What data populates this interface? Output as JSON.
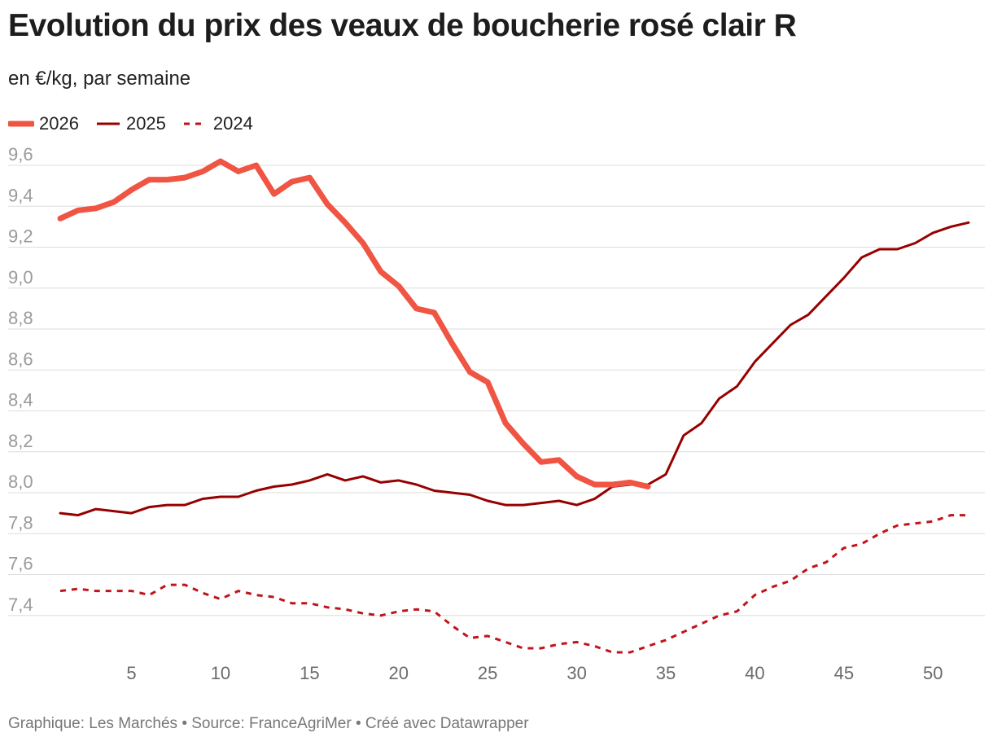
{
  "header": {
    "title": "Evolution du prix des veaux de boucherie rosé clair R",
    "subtitle": "en €/kg, par semaine"
  },
  "footer": {
    "text": "Graphique: Les Marchés • Source: FranceAgriMer • Créé avec Datawrapper"
  },
  "colors": {
    "s2026": "#f05443",
    "s2025": "#970000",
    "s2024": "#c0141a",
    "grid": "#dddddd"
  },
  "chart_data": {
    "type": "line",
    "title": "Evolution du prix des veaux de boucherie rosé clair R",
    "subtitle": "en €/kg, par semaine",
    "xlabel": "",
    "ylabel": "",
    "xlim": [
      1,
      52
    ],
    "ylim": [
      7.2,
      9.6
    ],
    "yticks": [
      7.4,
      7.6,
      7.8,
      8.0,
      8.2,
      8.4,
      8.6,
      8.8,
      9.0,
      9.2,
      9.4,
      9.6
    ],
    "ytick_labels": [
      "7,4",
      "7,6",
      "7,8",
      "8,0",
      "8,2",
      "8,4",
      "8,6",
      "8,8",
      "9,0",
      "9,2",
      "9,4",
      "9,6"
    ],
    "xticks": [
      5,
      10,
      15,
      20,
      25,
      30,
      35,
      40,
      45,
      50
    ],
    "xtick_labels": [
      "5",
      "10",
      "15",
      "20",
      "25",
      "30",
      "35",
      "40",
      "45",
      "50"
    ],
    "grid": true,
    "legend_position": "top-left",
    "series": [
      {
        "name": "2026",
        "style": "thick",
        "x": [
          1,
          2,
          3,
          4,
          5,
          6,
          7,
          8,
          9,
          10,
          11,
          12,
          13,
          14,
          15,
          16,
          17,
          18,
          19,
          20,
          21,
          22,
          23,
          24,
          25,
          26,
          27,
          28,
          29,
          30,
          31,
          32,
          33,
          34
        ],
        "values": [
          9.34,
          9.38,
          9.39,
          9.42,
          9.48,
          9.53,
          9.53,
          9.54,
          9.57,
          9.62,
          9.57,
          9.6,
          9.46,
          9.52,
          9.54,
          9.41,
          9.32,
          9.22,
          9.08,
          9.01,
          8.9,
          8.88,
          8.73,
          8.59,
          8.54,
          8.34,
          8.24,
          8.15,
          8.16,
          8.08,
          8.04,
          8.04,
          8.05,
          8.03
        ]
      },
      {
        "name": "2025",
        "style": "solid",
        "x": [
          1,
          2,
          3,
          4,
          5,
          6,
          7,
          8,
          9,
          10,
          11,
          12,
          13,
          14,
          15,
          16,
          17,
          18,
          19,
          20,
          21,
          22,
          23,
          24,
          25,
          26,
          27,
          28,
          29,
          30,
          31,
          32,
          33,
          34,
          35,
          36,
          37,
          38,
          39,
          40,
          41,
          42,
          43,
          44,
          45,
          46,
          47,
          48,
          49,
          50,
          51,
          52
        ],
        "values": [
          7.9,
          7.89,
          7.92,
          7.91,
          7.9,
          7.93,
          7.94,
          7.94,
          7.97,
          7.98,
          7.98,
          8.01,
          8.03,
          8.04,
          8.06,
          8.09,
          8.06,
          8.08,
          8.05,
          8.06,
          8.04,
          8.01,
          8.0,
          7.99,
          7.96,
          7.94,
          7.94,
          7.95,
          7.96,
          7.94,
          7.97,
          8.03,
          8.04,
          8.04,
          8.09,
          8.28,
          8.34,
          8.46,
          8.52,
          8.64,
          8.73,
          8.82,
          8.87,
          8.96,
          9.05,
          9.15,
          9.19,
          9.19,
          9.22,
          9.27,
          9.3,
          9.32
        ]
      },
      {
        "name": "2024",
        "style": "dashed",
        "x": [
          1,
          2,
          3,
          4,
          5,
          6,
          7,
          8,
          9,
          10,
          11,
          12,
          13,
          14,
          15,
          16,
          17,
          18,
          19,
          20,
          21,
          22,
          23,
          24,
          25,
          26,
          27,
          28,
          29,
          30,
          31,
          32,
          33,
          34,
          35,
          36,
          37,
          38,
          39,
          40,
          41,
          42,
          43,
          44,
          45,
          46,
          47,
          48,
          49,
          50,
          51,
          52
        ],
        "values": [
          7.52,
          7.53,
          7.52,
          7.52,
          7.52,
          7.5,
          7.55,
          7.55,
          7.51,
          7.48,
          7.52,
          7.5,
          7.49,
          7.46,
          7.46,
          7.44,
          7.43,
          7.41,
          7.4,
          7.42,
          7.43,
          7.42,
          7.35,
          7.29,
          7.3,
          7.27,
          7.24,
          7.24,
          7.26,
          7.27,
          7.25,
          7.22,
          7.22,
          7.25,
          7.28,
          7.32,
          7.36,
          7.4,
          7.42,
          7.5,
          7.54,
          7.57,
          7.63,
          7.66,
          7.73,
          7.75,
          7.8,
          7.84,
          7.85,
          7.86,
          7.89,
          7.89
        ]
      }
    ]
  }
}
